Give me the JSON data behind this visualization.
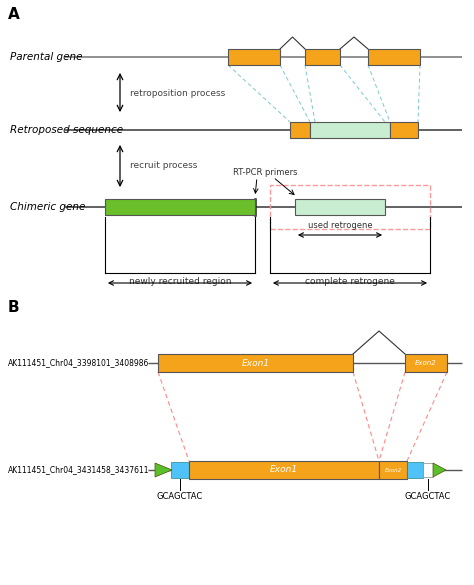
{
  "fig_width": 4.74,
  "fig_height": 5.85,
  "bg_color": "#ffffff",
  "orange": "#F5A31A",
  "light_green": "#C8EDD0",
  "bright_green": "#6BBF2A",
  "cyan_dashed": "#7EC8CC",
  "dark_line": "#333333",
  "label_A": "A",
  "label_B": "B",
  "parental_gene_label": "Parental gene",
  "retroposed_label": "Retroposed sequence",
  "chimeric_label": "Chimeric gene",
  "retroposition_text": "retroposition process",
  "recruit_text": "recruit process",
  "rt_pcr_text": "RT-PCR primers",
  "used_retrogene_text": "used retrogene",
  "newly_recruited_text": "newly recruited region",
  "complete_retrogene_text": "complete retrogene",
  "gene1_label": "AK111451_Chr04_3398101_3408986",
  "gene2_label": "AK111451_Chr04_3431458_3437611",
  "exon1_text": "Exon1",
  "exon2_text": "Exon2",
  "exon1b_text": "Exon1",
  "gcagctac_text": "GCAGCTAC"
}
